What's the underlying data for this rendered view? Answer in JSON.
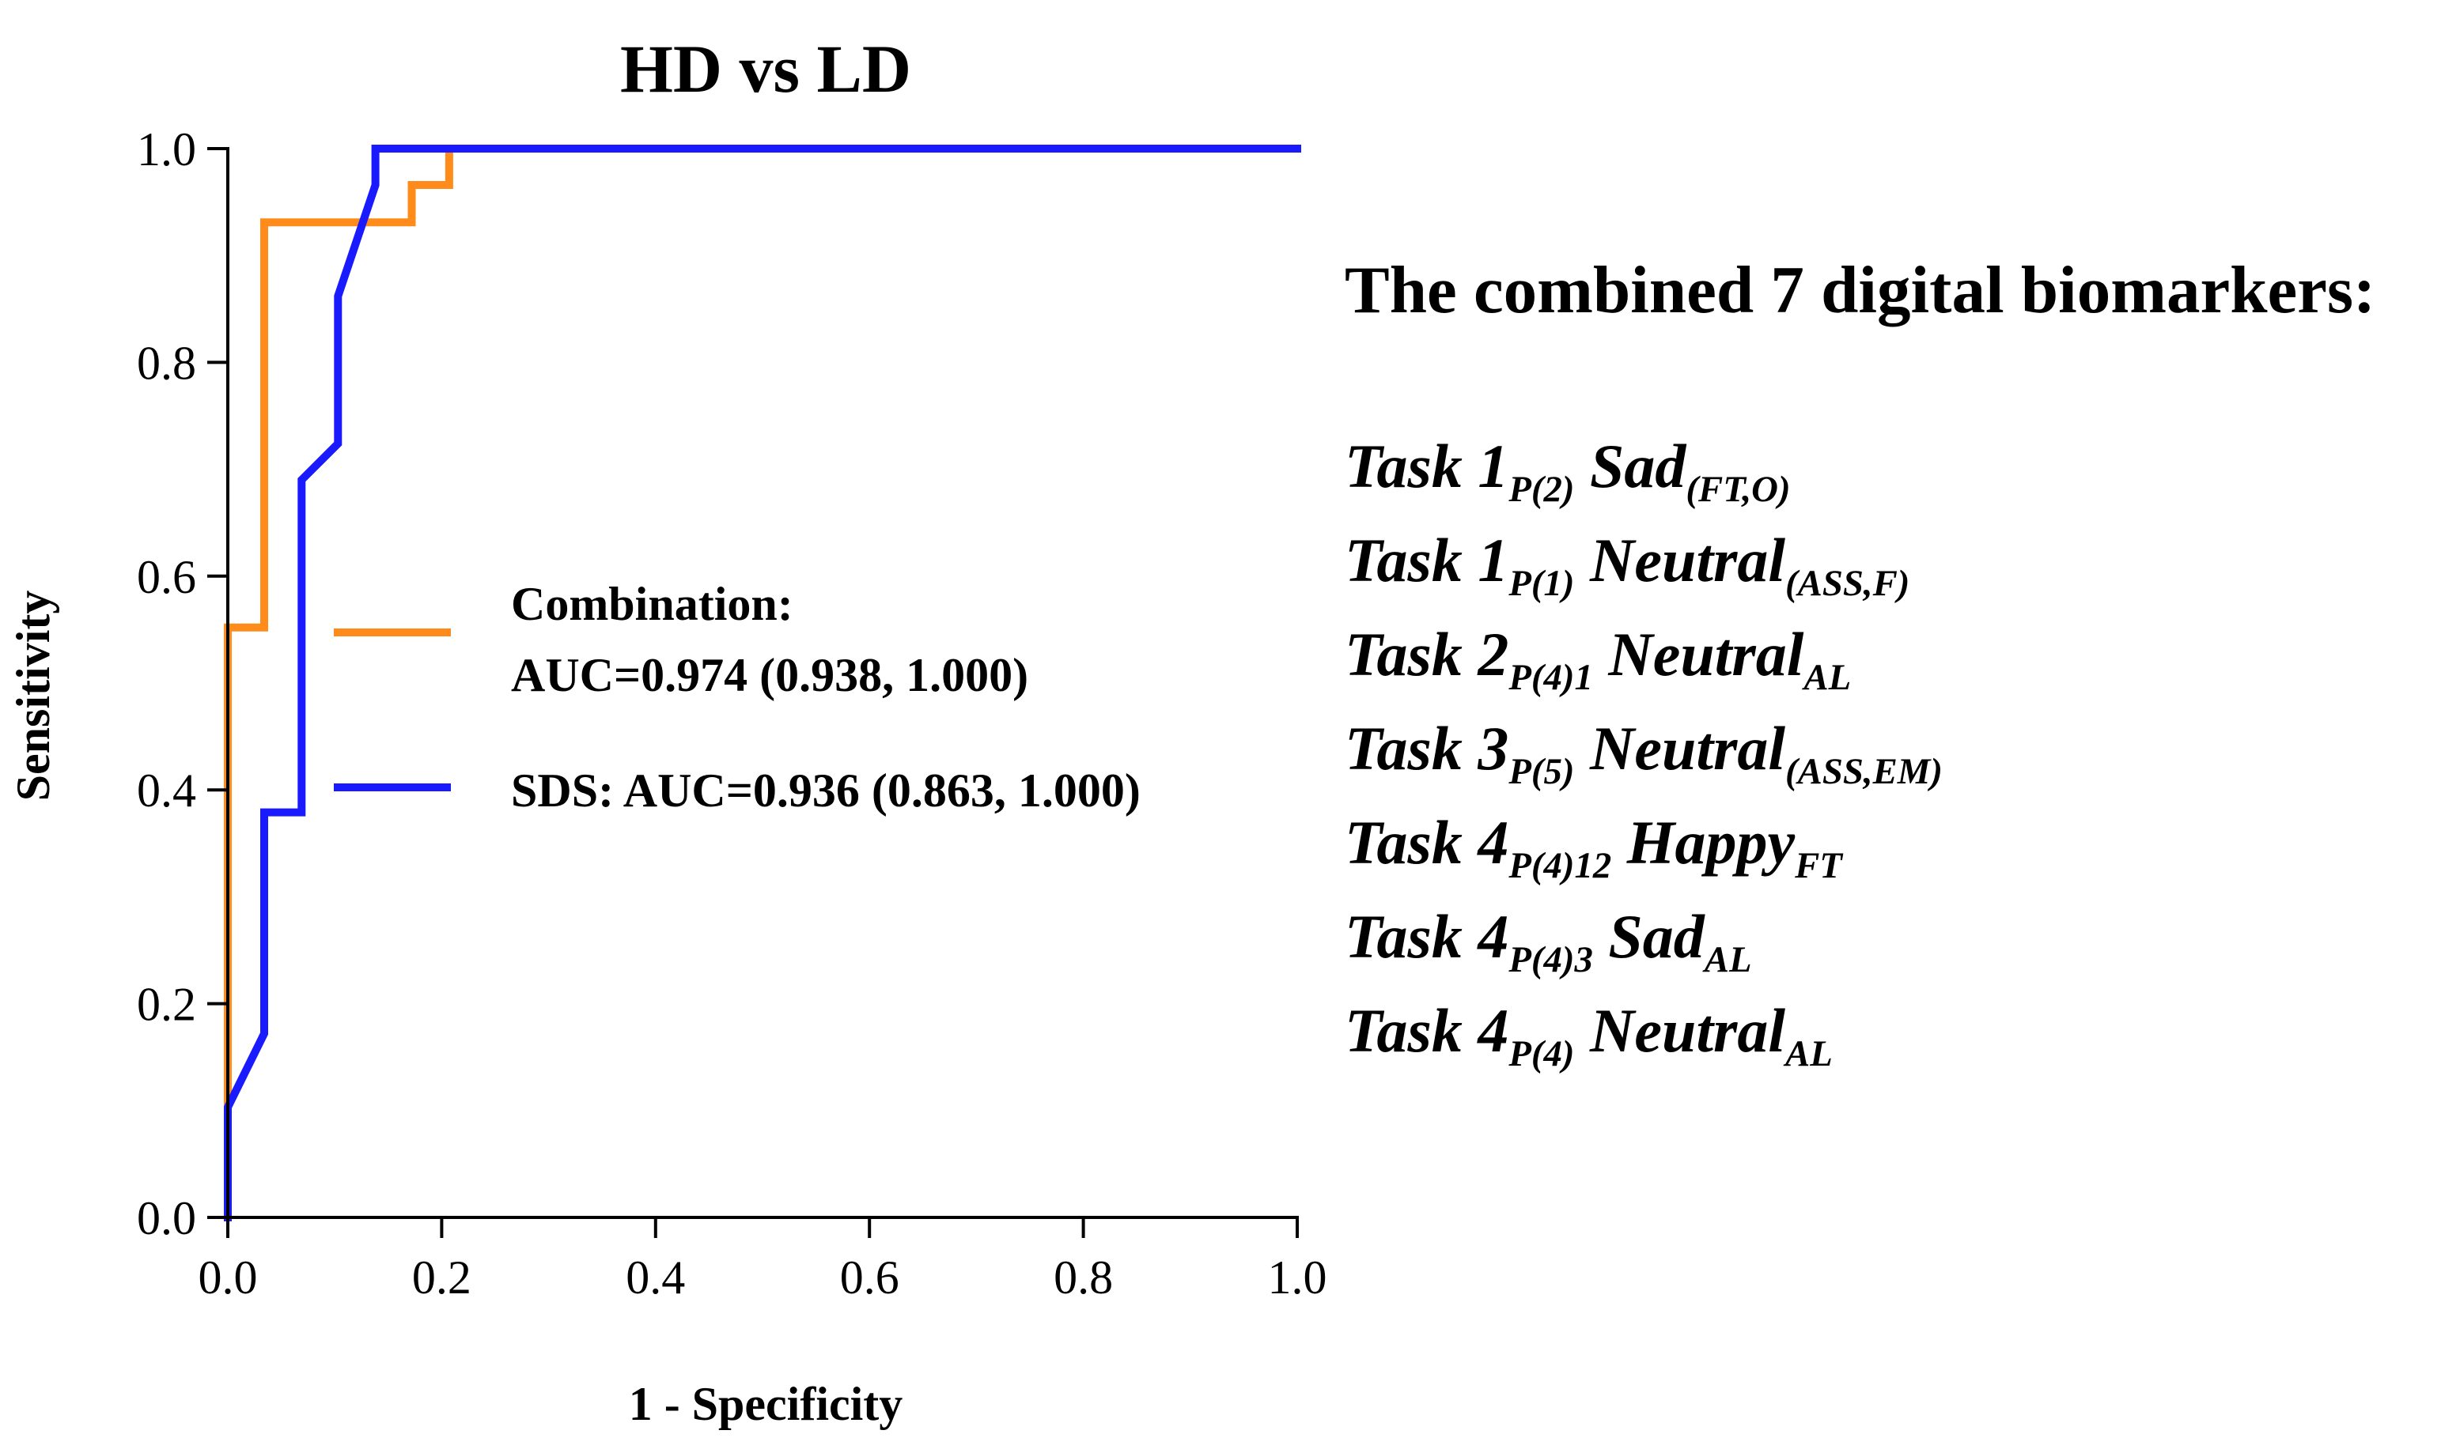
{
  "chart_data": {
    "type": "line",
    "title": "HD vs LD",
    "xlabel": "1 - Specificity",
    "ylabel": "Sensitivity",
    "xlim": [
      0,
      1
    ],
    "ylim": [
      0,
      1
    ],
    "x_ticks": [
      "0.0",
      "0.2",
      "0.4",
      "0.6",
      "0.8",
      "1.0"
    ],
    "y_ticks": [
      "0.0",
      "0.2",
      "0.4",
      "0.6",
      "0.8",
      "1.0"
    ],
    "grid": false,
    "legend_position": "center",
    "series": [
      {
        "name": "Combination:",
        "legend_detail": "AUC=0.974 (0.938, 1.000)",
        "color": "#ff8c1a",
        "points": [
          [
            0.0,
            0.103
          ],
          [
            0.0,
            0.552
          ],
          [
            0.034,
            0.552
          ],
          [
            0.034,
            0.931
          ],
          [
            0.172,
            0.931
          ],
          [
            0.172,
            0.966
          ],
          [
            0.207,
            0.966
          ],
          [
            0.207,
            1.0
          ],
          [
            1.0,
            1.0
          ]
        ]
      },
      {
        "name": "SDS: AUC=0.936 (0.863, 1.000)",
        "color": "#1a1aff",
        "points": [
          [
            0.0,
            0.0
          ],
          [
            0.0,
            0.103
          ],
          [
            0.034,
            0.172
          ],
          [
            0.034,
            0.379
          ],
          [
            0.069,
            0.379
          ],
          [
            0.069,
            0.69
          ],
          [
            0.103,
            0.724
          ],
          [
            0.103,
            0.862
          ],
          [
            0.138,
            0.966
          ],
          [
            0.138,
            1.0
          ],
          [
            1.0,
            1.0
          ]
        ]
      }
    ]
  },
  "biomarkers": {
    "heading": "The combined 7 digital biomarkers:",
    "items": [
      {
        "task": "Task 1",
        "task_sub": "P(2)",
        "emotion": "Sad",
        "emotion_sub": "(FT,O)"
      },
      {
        "task": "Task 1",
        "task_sub": "P(1)",
        "emotion": "Neutral",
        "emotion_sub": "(ASS,F)"
      },
      {
        "task": "Task 2",
        "task_sub": "P(4)1",
        "emotion": "Neutral",
        "emotion_sub": "AL"
      },
      {
        "task": "Task 3",
        "task_sub": "P(5)",
        "emotion": "Neutral",
        "emotion_sub": "(ASS,EM)"
      },
      {
        "task": "Task 4",
        "task_sub": "P(4)12",
        "emotion": "Happy",
        "emotion_sub": "FT"
      },
      {
        "task": "Task 4",
        "task_sub": "P(4)3",
        "emotion": "Sad",
        "emotion_sub": "AL"
      },
      {
        "task": "Task 4",
        "task_sub": "P(4)",
        "emotion": "Neutral",
        "emotion_sub": "AL"
      }
    ]
  }
}
